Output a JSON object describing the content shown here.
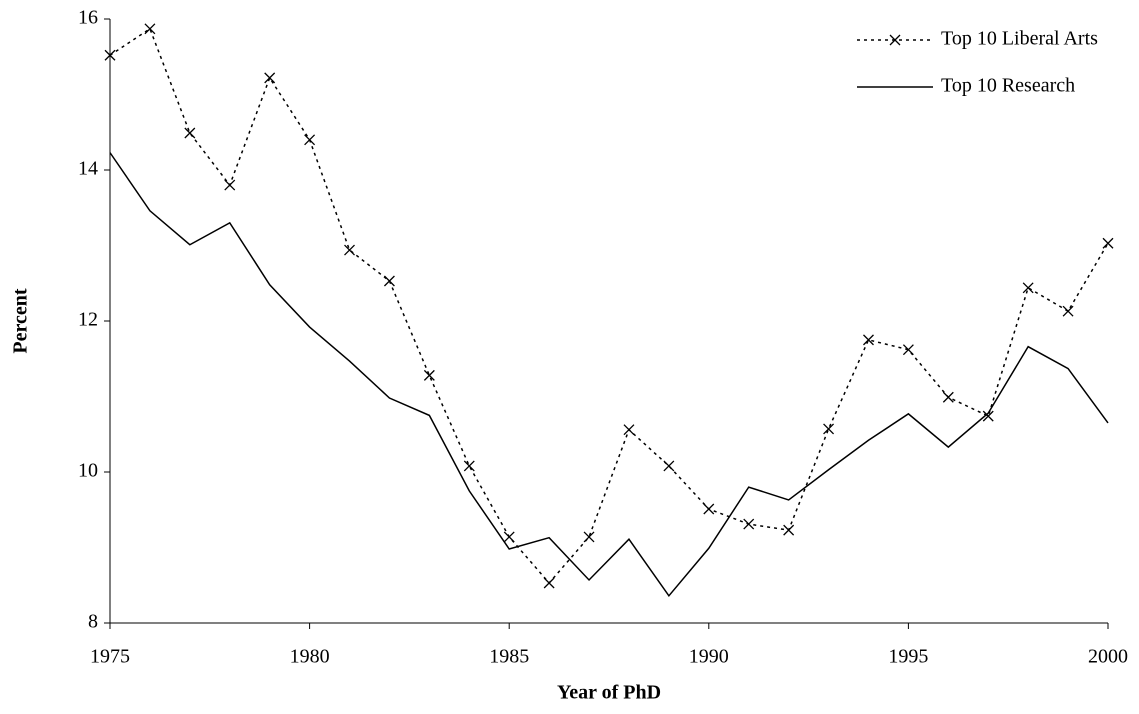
{
  "chart_data": {
    "type": "line",
    "x_label": "Year of PhD",
    "y_label": "Percent",
    "x": [
      1975,
      1976,
      1977,
      1978,
      1979,
      1980,
      1981,
      1982,
      1983,
      1984,
      1985,
      1986,
      1987,
      1988,
      1989,
      1990,
      1991,
      1992,
      1993,
      1994,
      1995,
      1996,
      1997,
      1998,
      1999,
      2000
    ],
    "series": [
      {
        "name": "Top 10 Liberal Arts",
        "color": "#000000",
        "style": "dotted",
        "marker": "x",
        "values": [
          15.52,
          15.87,
          14.49,
          13.8,
          15.22,
          14.4,
          12.94,
          12.53,
          11.28,
          10.08,
          9.14,
          8.53,
          9.14,
          10.56,
          10.08,
          9.51,
          9.31,
          9.23,
          10.57,
          11.75,
          11.62,
          10.99,
          10.74,
          12.44,
          12.13,
          13.03
        ]
      },
      {
        "name": "Top 10 Research",
        "color": "#000000",
        "style": "solid",
        "marker": "none",
        "values": [
          14.23,
          13.46,
          13.01,
          13.3,
          12.48,
          11.92,
          11.47,
          10.98,
          10.75,
          9.75,
          8.98,
          9.13,
          8.57,
          9.11,
          8.36,
          8.99,
          9.8,
          9.63,
          10.03,
          10.42,
          10.77,
          10.33,
          10.78,
          11.66,
          11.37,
          10.65
        ]
      }
    ],
    "xlim": [
      1975,
      2000
    ],
    "xticks": [
      1975,
      1980,
      1985,
      1990,
      1995,
      2000
    ],
    "ylim": [
      8,
      16
    ],
    "yticks": [
      8,
      10,
      12,
      14,
      16
    ],
    "grid": false,
    "legend": "upper right"
  }
}
